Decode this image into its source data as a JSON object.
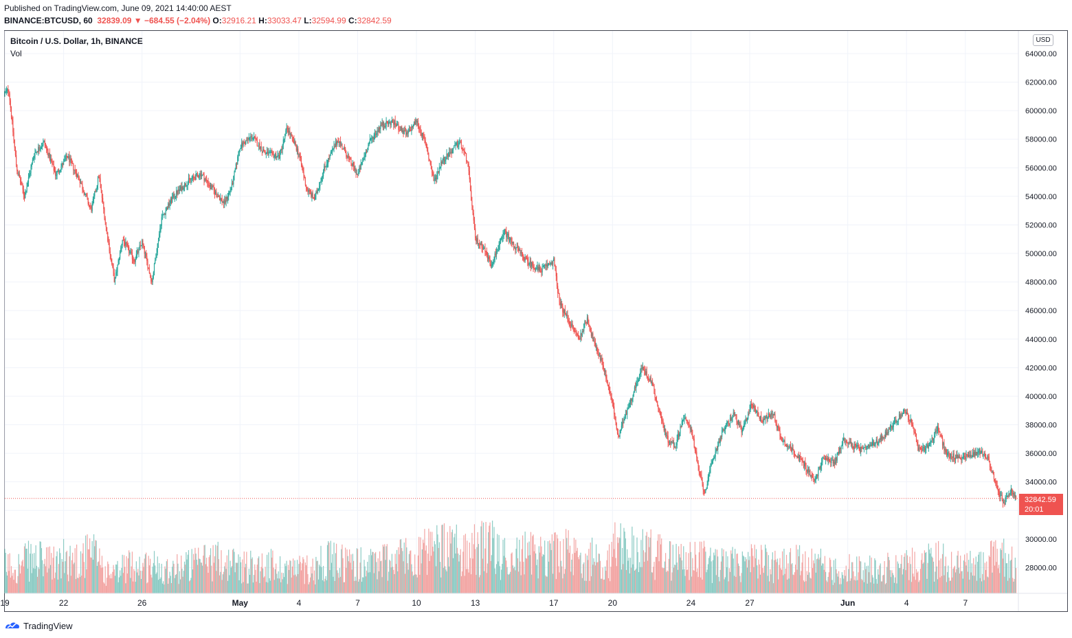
{
  "header": {
    "published": "Published on TradingView.com, June 09, 2021 14:40:00 AEST",
    "symbol": "BINANCE:BTCUSD, 60",
    "last": "32839.09",
    "arrow": "▼",
    "change": "−684.55 (−2.04%)",
    "open_label": "O:",
    "open": "32916.21",
    "high_label": "H:",
    "high": "33033.47",
    "low_label": "L:",
    "low": "32594.99",
    "close_label": "C:",
    "close": "32842.59"
  },
  "legend": {
    "title": "Bitcoin / U.S. Dollar, 1h, BINANCE",
    "volume": "Vol"
  },
  "currency_badge": "USD",
  "price_tag": {
    "price": "32842.59",
    "countdown": "20:01"
  },
  "footer": {
    "brand": "TradingView"
  },
  "colors": {
    "up": "#26a69a",
    "down": "#ef5350",
    "up_vol": "#8ccbc4",
    "down_vol": "#f2a5a3",
    "grid": "#f0f3fa"
  },
  "chart_data": {
    "type": "candlestick",
    "title": "Bitcoin / U.S. Dollar, 1h, BINANCE",
    "ylabel": "USD",
    "ylim": [
      26000,
      65000
    ],
    "y_ticks": [
      "28000.00",
      "30000.00",
      "32000.00",
      "34000.00",
      "36000.00",
      "38000.00",
      "40000.00",
      "42000.00",
      "44000.00",
      "46000.00",
      "48000.00",
      "50000.00",
      "52000.00",
      "54000.00",
      "56000.00",
      "58000.00",
      "60000.00",
      "62000.00",
      "64000.00"
    ],
    "x_ticks": [
      "19",
      "22",
      "26",
      "May",
      "4",
      "7",
      "10",
      "13",
      "17",
      "20",
      "24",
      "27",
      "Jun",
      "4",
      "7"
    ],
    "x_tick_days": [
      0,
      3,
      7,
      12,
      15,
      18,
      21,
      24,
      28,
      31,
      35,
      38,
      43,
      46,
      49
    ],
    "start_date": "2021-04-18T15:00",
    "days_span": 51.6,
    "price_path": [
      [
        0,
        61200
      ],
      [
        0.2,
        61500
      ],
      [
        0.6,
        56000
      ],
      [
        1.0,
        54000
      ],
      [
        1.5,
        57000
      ],
      [
        2.0,
        57800
      ],
      [
        2.6,
        55500
      ],
      [
        3.2,
        56800
      ],
      [
        3.8,
        55200
      ],
      [
        4.4,
        53000
      ],
      [
        4.8,
        55500
      ],
      [
        5.2,
        51500
      ],
      [
        5.6,
        48000
      ],
      [
        6.0,
        51000
      ],
      [
        6.6,
        49500
      ],
      [
        7.0,
        50800
      ],
      [
        7.5,
        48000
      ],
      [
        8.0,
        52500
      ],
      [
        8.6,
        54000
      ],
      [
        9.3,
        55000
      ],
      [
        10.0,
        55600
      ],
      [
        10.6,
        54500
      ],
      [
        11.2,
        53500
      ],
      [
        11.6,
        54800
      ],
      [
        12.0,
        57500
      ],
      [
        12.6,
        58200
      ],
      [
        13.3,
        57000
      ],
      [
        14.0,
        56800
      ],
      [
        14.4,
        58800
      ],
      [
        15.0,
        57000
      ],
      [
        15.4,
        54500
      ],
      [
        15.8,
        53800
      ],
      [
        16.3,
        56000
      ],
      [
        17.0,
        58000
      ],
      [
        17.6,
        56500
      ],
      [
        18.0,
        55500
      ],
      [
        18.6,
        57800
      ],
      [
        19.2,
        59000
      ],
      [
        19.8,
        59200
      ],
      [
        20.5,
        58300
      ],
      [
        21.0,
        59300
      ],
      [
        21.5,
        57500
      ],
      [
        21.9,
        55000
      ],
      [
        22.3,
        56500
      ],
      [
        22.8,
        57200
      ],
      [
        23.2,
        57800
      ],
      [
        23.6,
        56500
      ],
      [
        24.0,
        51000
      ],
      [
        24.4,
        50500
      ],
      [
        24.8,
        49200
      ],
      [
        25.5,
        51500
      ],
      [
        26.0,
        50500
      ],
      [
        26.6,
        49500
      ],
      [
        27.3,
        48800
      ],
      [
        28.0,
        49500
      ],
      [
        28.3,
        46500
      ],
      [
        28.8,
        45200
      ],
      [
        29.3,
        44000
      ],
      [
        29.7,
        45500
      ],
      [
        30.1,
        43500
      ],
      [
        30.5,
        42300
      ],
      [
        31.0,
        39500
      ],
      [
        31.3,
        37000
      ],
      [
        31.6,
        38500
      ],
      [
        32.0,
        40000
      ],
      [
        32.5,
        42000
      ],
      [
        33.0,
        41000
      ],
      [
        33.4,
        38800
      ],
      [
        33.8,
        37000
      ],
      [
        34.2,
        36500
      ],
      [
        34.6,
        38500
      ],
      [
        35.0,
        37800
      ],
      [
        35.4,
        34800
      ],
      [
        35.7,
        33200
      ],
      [
        36.1,
        35500
      ],
      [
        36.6,
        37500
      ],
      [
        37.2,
        38800
      ],
      [
        37.6,
        37500
      ],
      [
        38.1,
        39500
      ],
      [
        38.6,
        38300
      ],
      [
        39.2,
        38800
      ],
      [
        39.6,
        37000
      ],
      [
        40.2,
        36200
      ],
      [
        40.8,
        35200
      ],
      [
        41.3,
        34000
      ],
      [
        41.8,
        35800
      ],
      [
        42.3,
        35300
      ],
      [
        42.8,
        37000
      ],
      [
        43.3,
        36500
      ],
      [
        43.8,
        36200
      ],
      [
        44.5,
        36800
      ],
      [
        45.0,
        37500
      ],
      [
        45.6,
        38500
      ],
      [
        45.9,
        39000
      ],
      [
        46.3,
        38000
      ],
      [
        46.6,
        36200
      ],
      [
        47.1,
        36500
      ],
      [
        47.6,
        37800
      ],
      [
        48.0,
        36000
      ],
      [
        48.6,
        35700
      ],
      [
        49.2,
        35800
      ],
      [
        49.8,
        36200
      ],
      [
        50.2,
        35500
      ],
      [
        50.6,
        33500
      ],
      [
        51.0,
        32500
      ],
      [
        51.3,
        33400
      ],
      [
        51.6,
        32840
      ]
    ],
    "volume_range": [
      0,
      3000
    ],
    "volume_profile_by_day": [
      2.2,
      2.6,
      2.4,
      2.7,
      3.0,
      1.6,
      2.2,
      2.2,
      2.0,
      2.3,
      2.7,
      2.4,
      2.2,
      2.2,
      2.0,
      2.0,
      2.6,
      2.5,
      2.3,
      2.7,
      3.0,
      3.2,
      3.5,
      3.5,
      3.6,
      3.0,
      3.1,
      3.2,
      3.2,
      2.8,
      2.6,
      3.7,
      3.3,
      3.0,
      2.6,
      2.6,
      2.3,
      2.3,
      2.5,
      2.3,
      2.4,
      2.3,
      1.8,
      2.0,
      1.9,
      2.1,
      2.3,
      2.6,
      2.2,
      2.1,
      2.7,
      2.4
    ],
    "current_price": 32842.59
  }
}
